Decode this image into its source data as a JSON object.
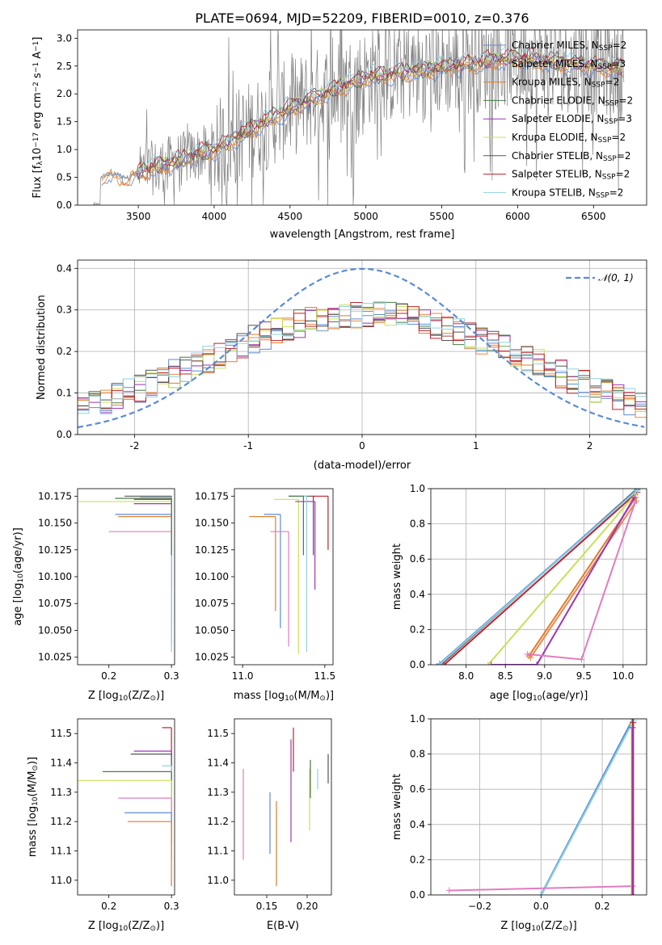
{
  "chart_data": [
    {
      "id": "spectrum",
      "type": "line",
      "title": "PLATE=0694, MJD=52209, FIBERID=0010, z=0.376",
      "xlabel": "wavelength [Angstrom, rest frame]",
      "ylabel": "Flux [f_λ 10^-17 erg cm^-2 s^-1 A^-1]",
      "ylabel_parts": {
        "main": "Flux [f",
        "sub": "λ",
        "mid": "10",
        "sup1": "−17",
        "u1": " erg cm",
        "sup2": "−2",
        "u2": " s",
        "sup3": "−1",
        "u3": " A",
        "sup4": "−1",
        "end": "]"
      },
      "xlim": [
        3100,
        6850
      ],
      "ylim": [
        0,
        3.15
      ],
      "xticks": [
        3500,
        4000,
        4500,
        5000,
        5500,
        6000,
        6500
      ],
      "yticks": [
        0.0,
        0.5,
        1.0,
        1.5,
        2.0,
        2.5,
        3.0
      ],
      "data_color": "#808080",
      "legend": [
        {
          "name": "Chabrier MILES, N",
          "sub": "SSP",
          "tail": "=2",
          "color": "#5b8bd8"
        },
        {
          "name": "Salpeter MILES, N",
          "sub": "SSP",
          "tail": "=3",
          "color": "#e8884a"
        },
        {
          "name": "Kroupa MILES, N",
          "sub": "SSP",
          "tail": "=2",
          "color": "#e07b2a"
        },
        {
          "name": "Chabrier ELODIE, N",
          "sub": "SSP",
          "tail": "=2",
          "color": "#4a7a4a"
        },
        {
          "name": "Salpeter ELODIE, N",
          "sub": "SSP",
          "tail": "=3",
          "color": "#9b35b8"
        },
        {
          "name": "Kroupa ELODIE, N",
          "sub": "SSP",
          "tail": "=2",
          "color": "#c9e05a"
        },
        {
          "name": "Chabrier STELIB, N",
          "sub": "SSP",
          "tail": "=2",
          "color": "#555555"
        },
        {
          "name": "Salpeter STELIB, N",
          "sub": "SSP",
          "tail": "=2",
          "color": "#c0202a"
        },
        {
          "name": "Kroupa STELIB, N",
          "sub": "SSP",
          "tail": "=2",
          "color": "#8fd0e0"
        }
      ]
    },
    {
      "id": "residuals",
      "type": "line",
      "xlabel": "(data-model)/error",
      "ylabel": "Normed distribution",
      "xlim": [
        -2.5,
        2.5
      ],
      "ylim": [
        0,
        0.42
      ],
      "xticks": [
        -2,
        -1,
        0,
        1,
        2
      ],
      "yticks": [
        0.0,
        0.1,
        0.2,
        0.3,
        0.4
      ],
      "grid": true,
      "legend_entry": "𝒩(0, 1)",
      "gaussian_color": "#5b8bd8"
    },
    {
      "id": "age-vs-z",
      "type": "scatter",
      "xlabel": "Z [log10(Z/Z⊙)]",
      "xlabel_parts": {
        "a": "Z [log",
        "sub": "10",
        "b": "(Z/Z",
        "sub2": "⊙",
        "c": ")]"
      },
      "ylabel": "age [log10(age/yr)]",
      "ylabel_parts": {
        "a": "age  [log",
        "sub": "10",
        "b": "(age/yr)]"
      },
      "xlim": [
        0.15,
        0.305
      ],
      "ylim": [
        10.018,
        10.182
      ],
      "xticks": [
        0.2,
        0.3
      ],
      "yticks": [
        10.025,
        10.05,
        10.075,
        10.1,
        10.125,
        10.15,
        10.175
      ],
      "ytick_labels": [
        "10.025",
        "10.050",
        "10.075",
        "10.100",
        "10.125",
        "10.150",
        "10.175"
      ],
      "xtick_labels": [
        "0.2",
        "0.3"
      ],
      "points": [
        {
          "x": 0.3,
          "y": 10.175,
          "xlo": 0.225,
          "ylo": 10.12,
          "color": "#555555"
        },
        {
          "x": 0.3,
          "y": 10.172,
          "xlo": 0.24,
          "ylo": 10.125,
          "color": "#c0202a"
        },
        {
          "x": 0.3,
          "y": 10.17,
          "xlo": 0.15,
          "ylo": 10.04,
          "color": "#c9e05a"
        },
        {
          "x": 0.3,
          "y": 10.168,
          "xlo": 0.24,
          "ylo": 10.09,
          "color": "#9b35b8"
        },
        {
          "x": 0.3,
          "y": 10.158,
          "xlo": 0.21,
          "ylo": 10.055,
          "color": "#5b8bd8"
        },
        {
          "x": 0.3,
          "y": 10.156,
          "xlo": 0.215,
          "ylo": 10.068,
          "color": "#e07b2a"
        },
        {
          "x": 0.3,
          "y": 10.142,
          "xlo": 0.2,
          "ylo": 10.035,
          "color": "#e37bbf"
        },
        {
          "x": 0.3,
          "y": 10.174,
          "xlo": 0.25,
          "ylo": 10.03,
          "color": "#8fd0e0"
        },
        {
          "x": 0.3,
          "y": 10.173,
          "xlo": 0.21,
          "ylo": 10.12,
          "color": "#4a7a4a"
        }
      ]
    },
    {
      "id": "age-vs-mass",
      "type": "scatter",
      "xlabel": "mass [log10(M/M⊙)]",
      "xlabel_parts": {
        "a": "mass [log",
        "sub": "10",
        "b": "(M/M",
        "sub2": "⊙",
        "c": ")]"
      },
      "xlim": [
        10.95,
        11.55
      ],
      "ylim": [
        10.018,
        10.182
      ],
      "xticks": [
        11.0,
        11.5
      ],
      "xtick_labels": [
        "11.0",
        "11.5"
      ],
      "yticks": [
        10.025,
        10.05,
        10.075,
        10.1,
        10.125,
        10.15,
        10.175
      ],
      "ytick_labels": [
        "10.025",
        "10.050",
        "10.075",
        "10.100",
        "10.125",
        "10.150",
        "10.175"
      ],
      "points": [
        {
          "x": 11.43,
          "y": 10.175,
          "xlo": 11.28,
          "ylo": 10.12,
          "color": "#555555"
        },
        {
          "x": 11.52,
          "y": 10.175,
          "xlo": 11.42,
          "ylo": 10.125,
          "color": "#c0202a"
        },
        {
          "x": 11.34,
          "y": 10.172,
          "xlo": 11.19,
          "ylo": 10.028,
          "color": "#c9e05a"
        },
        {
          "x": 11.44,
          "y": 10.17,
          "xlo": 11.32,
          "ylo": 10.088,
          "color": "#9b35b8"
        },
        {
          "x": 11.23,
          "y": 10.158,
          "xlo": 11.13,
          "ylo": 10.052,
          "color": "#5b8bd8"
        },
        {
          "x": 11.2,
          "y": 10.156,
          "xlo": 11.04,
          "ylo": 10.068,
          "color": "#e07b2a"
        },
        {
          "x": 11.28,
          "y": 10.142,
          "xlo": 11.17,
          "ylo": 10.035,
          "color": "#e37bbf"
        },
        {
          "x": 11.39,
          "y": 10.175,
          "xlo": 11.3,
          "ylo": 10.03,
          "color": "#8fd0e0"
        },
        {
          "x": 11.37,
          "y": 10.175,
          "xlo": 11.28,
          "ylo": 10.12,
          "color": "#4a7a4a"
        }
      ]
    },
    {
      "id": "mass-weight-vs-age",
      "type": "line",
      "xlabel": "age [log10(age/yr)]",
      "xlabel_parts": {
        "a": "age  [log",
        "sub": "10",
        "b": "(age/yr)]"
      },
      "ylabel": "mass weight",
      "xlim": [
        7.55,
        10.3
      ],
      "ylim": [
        0,
        1
      ],
      "xticks": [
        8.0,
        8.5,
        9.0,
        9.5,
        10.0
      ],
      "xtick_labels": [
        "8.0",
        "8.5",
        "9.0",
        "9.5",
        "10.0"
      ],
      "yticks": [
        0.0,
        0.2,
        0.4,
        0.6,
        0.8,
        1.0
      ],
      "ytick_labels": [
        "0.0",
        "0.2",
        "0.4",
        "0.6",
        "0.8",
        "1.0"
      ],
      "grid": true,
      "series": [
        {
          "color": "#555555",
          "x": [
            7.68,
            10.18
          ],
          "y": [
            0.0,
            1.0
          ]
        },
        {
          "color": "#c0202a",
          "x": [
            7.72,
            10.18
          ],
          "y": [
            0.0,
            0.98
          ]
        },
        {
          "color": "#5b8bd8",
          "x": [
            7.66,
            10.18
          ],
          "y": [
            0.005,
            0.995
          ]
        },
        {
          "color": "#8fd0e0",
          "x": [
            7.66,
            10.18
          ],
          "y": [
            0.0,
            0.99
          ]
        },
        {
          "color": "#c9e05a",
          "x": [
            8.28,
            10.16
          ],
          "y": [
            0.0,
            0.97
          ]
        },
        {
          "color": "#e07b2a",
          "x": [
            8.8,
            10.16
          ],
          "y": [
            0.05,
            0.95
          ]
        },
        {
          "color": "#e8884a",
          "x": [
            8.82,
            10.17
          ],
          "y": [
            0.04,
            0.93
          ]
        },
        {
          "color": "#9b35b8",
          "x": [
            8.32,
            8.9,
            10.14
          ],
          "y": [
            0.0,
            0.0,
            0.95
          ]
        },
        {
          "color": "#e37bbf",
          "x": [
            8.78,
            9.47,
            10.15
          ],
          "y": [
            0.06,
            0.03,
            0.92
          ]
        }
      ]
    },
    {
      "id": "mass-vs-z",
      "type": "scatter",
      "xlabel": "Z [log10(Z/Z⊙)]",
      "xlabel_parts": {
        "a": "Z [log",
        "sub": "10",
        "b": "(Z/Z",
        "sub2": "⊙",
        "c": ")]"
      },
      "ylabel": "mass [log10(M/M⊙)]",
      "ylabel_parts": {
        "a": "mass [log",
        "sub": "10",
        "b": "(M/M",
        "sub2": "⊙",
        "c": ")]"
      },
      "xlim": [
        0.15,
        0.305
      ],
      "ylim": [
        10.95,
        11.55
      ],
      "xticks": [
        0.2,
        0.3
      ],
      "xtick_labels": [
        "0.2",
        "0.3"
      ],
      "yticks": [
        11.0,
        11.1,
        11.2,
        11.3,
        11.4,
        11.5
      ],
      "ytick_labels": [
        "11.0",
        "11.1",
        "11.2",
        "11.3",
        "11.4",
        "11.5"
      ],
      "points": [
        {
          "x": 0.3,
          "y": 11.52,
          "xlo": 0.285,
          "ylo": 11.42,
          "color": "#c0202a"
        },
        {
          "x": 0.3,
          "y": 11.44,
          "xlo": 0.24,
          "ylo": 11.17,
          "color": "#9b35b8"
        },
        {
          "x": 0.3,
          "y": 11.43,
          "xlo": 0.235,
          "ylo": 11.3,
          "color": "#555555"
        },
        {
          "x": 0.3,
          "y": 11.39,
          "xlo": 0.285,
          "ylo": 11.3,
          "color": "#8fd0e0"
        },
        {
          "x": 0.3,
          "y": 11.37,
          "xlo": 0.19,
          "ylo": 11.28,
          "color": "#4a7a4a"
        },
        {
          "x": 0.3,
          "y": 11.34,
          "xlo": 0.15,
          "ylo": 11.19,
          "color": "#c9e05a"
        },
        {
          "x": 0.3,
          "y": 11.28,
          "xlo": 0.215,
          "ylo": 11.07,
          "color": "#e37bbf"
        },
        {
          "x": 0.3,
          "y": 11.23,
          "xlo": 0.225,
          "ylo": 11.13,
          "color": "#5b8bd8"
        },
        {
          "x": 0.3,
          "y": 11.2,
          "xlo": 0.23,
          "ylo": 10.98,
          "color": "#e07b2a"
        }
      ]
    },
    {
      "id": "mass-vs-ebv",
      "type": "scatter",
      "xlabel": "E(B-V)",
      "xlim": [
        0.11,
        0.23
      ],
      "ylim": [
        10.95,
        11.55
      ],
      "xticks": [
        0.15,
        0.2
      ],
      "xtick_labels": [
        "0.15",
        "0.20"
      ],
      "yticks": [
        11.0,
        11.1,
        11.2,
        11.3,
        11.4,
        11.5
      ],
      "ytick_labels": [
        "11.0",
        "11.1",
        "11.2",
        "11.3",
        "11.4",
        "11.5"
      ],
      "points": [
        {
          "x": 0.121,
          "y1": 11.07,
          "y2": 11.38,
          "color": "#e37bbf"
        },
        {
          "x": 0.154,
          "y1": 11.09,
          "y2": 11.3,
          "color": "#5b8bd8"
        },
        {
          "x": 0.162,
          "y1": 10.98,
          "y2": 11.27,
          "color": "#e07b2a"
        },
        {
          "x": 0.18,
          "y1": 11.13,
          "y2": 11.48,
          "color": "#9b35b8"
        },
        {
          "x": 0.183,
          "y1": 11.37,
          "y2": 11.52,
          "color": "#c0202a"
        },
        {
          "x": 0.203,
          "y1": 11.17,
          "y2": 11.38,
          "color": "#c9e05a"
        },
        {
          "x": 0.204,
          "y1": 11.28,
          "y2": 11.41,
          "color": "#4a7a4a"
        },
        {
          "x": 0.213,
          "y1": 11.31,
          "y2": 11.38,
          "color": "#8fd0e0"
        },
        {
          "x": 0.226,
          "y1": 11.33,
          "y2": 11.43,
          "color": "#555555"
        }
      ]
    },
    {
      "id": "mass-weight-vs-z",
      "type": "line",
      "xlabel": "Z [log10(Z/Z⊙)]",
      "xlabel_parts": {
        "a": "Z [log",
        "sub": "10",
        "b": "(Z/Z",
        "sub2": "⊙",
        "c": ")]"
      },
      "ylabel": "mass weight",
      "xlim": [
        -0.36,
        0.345
      ],
      "ylim": [
        0,
        1
      ],
      "xticks": [
        -0.2,
        0.0,
        0.2
      ],
      "xtick_labels": [
        "−0.2",
        "0.0",
        "0.2"
      ],
      "yticks": [
        0.0,
        0.2,
        0.4,
        0.6,
        0.8,
        1.0
      ],
      "ytick_labels": [
        "0.0",
        "0.2",
        "0.4",
        "0.6",
        "0.8",
        "1.0"
      ],
      "grid": true,
      "series": [
        {
          "color": "#5b8bd8",
          "x": [
            0.0,
            0.3
          ],
          "y": [
            0.0,
            1.0
          ]
        },
        {
          "color": "#8fd0e0",
          "x": [
            0.002,
            0.302
          ],
          "y": [
            0.0,
            0.99
          ]
        },
        {
          "color": "#e37bbf",
          "x": [
            -0.3,
            0.3
          ],
          "y": [
            0.025,
            0.05
          ]
        },
        {
          "color": "#c9e05a",
          "x": [
            0.296,
            0.296
          ],
          "y": [
            0.0,
            0.97
          ]
        },
        {
          "color": "#e07b2a",
          "x": [
            0.298,
            0.298
          ],
          "y": [
            0.0,
            0.95
          ]
        },
        {
          "color": "#555555",
          "x": [
            0.3,
            0.3
          ],
          "y": [
            0.0,
            1.0
          ]
        },
        {
          "color": "#c0202a",
          "x": [
            0.301,
            0.301
          ],
          "y": [
            0.0,
            0.98
          ]
        },
        {
          "color": "#9b35b8",
          "x": [
            0.299,
            0.299
          ],
          "y": [
            0.0,
            0.95
          ]
        }
      ]
    }
  ]
}
